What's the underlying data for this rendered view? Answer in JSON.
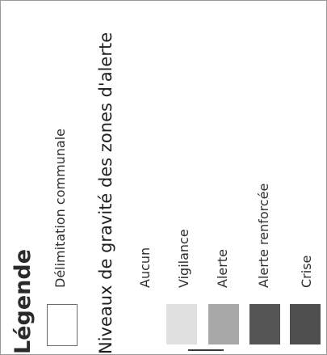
{
  "legend": {
    "title": "Légende",
    "layer_label": "Délimitation communale",
    "section_title": "Niveaux de gravité des zones d'alerte",
    "classes": [
      {
        "label": "Aucun",
        "color": ""
      },
      {
        "label": "Vigilance",
        "color": "#e0e0e0"
      },
      {
        "label": "Alerte",
        "color": "#a8a8a8"
      },
      {
        "label": "Alerte renforcée",
        "color": "#555555"
      },
      {
        "label": "Crise",
        "color": "#4e4e4e"
      }
    ]
  }
}
